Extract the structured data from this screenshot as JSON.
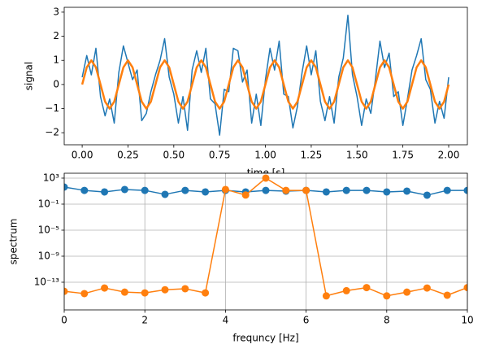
{
  "chart_data": [
    {
      "type": "line",
      "xlabel": "time [s]",
      "ylabel": "signal",
      "x": [
        0,
        0.025,
        0.05,
        0.075,
        0.1,
        0.125,
        0.15,
        0.175,
        0.2,
        0.225,
        0.25,
        0.275,
        0.3,
        0.325,
        0.35,
        0.375,
        0.4,
        0.425,
        0.45,
        0.475,
        0.5,
        0.525,
        0.55,
        0.575,
        0.6,
        0.625,
        0.65,
        0.675,
        0.7,
        0.725,
        0.75,
        0.775,
        0.8,
        0.825,
        0.85,
        0.875,
        0.9,
        0.925,
        0.95,
        0.975,
        1,
        1.025,
        1.05,
        1.075,
        1.1,
        1.125,
        1.15,
        1.175,
        1.2,
        1.225,
        1.25,
        1.275,
        1.3,
        1.325,
        1.35,
        1.375,
        1.4,
        1.425,
        1.45,
        1.475,
        1.5,
        1.525,
        1.55,
        1.575,
        1.6,
        1.625,
        1.65,
        1.675,
        1.7,
        1.725,
        1.75,
        1.775,
        1.8,
        1.825,
        1.85,
        1.875,
        1.9,
        1.925,
        1.95,
        1.975,
        2
      ],
      "series": [
        {
          "color": "#1f77b4",
          "values": [
            0.3,
            1.2,
            0.4,
            1.5,
            -0.5,
            -1.3,
            -0.6,
            -1.6,
            0.5,
            1.6,
            0.9,
            0.2,
            0.6,
            -1.5,
            -1.2,
            -0.3,
            0.4,
            1.0,
            1.9,
            0.3,
            -0.4,
            -1.6,
            -0.5,
            -1.9,
            0.6,
            1.4,
            0.5,
            1.5,
            -0.6,
            -0.8,
            -2.1,
            -0.2,
            -0.3,
            1.5,
            1.4,
            0.1,
            0.6,
            -1.6,
            -0.4,
            -1.7,
            0.2,
            1.5,
            0.6,
            1.8,
            -0.4,
            -0.5,
            -1.8,
            -0.9,
            0.5,
            1.6,
            0.4,
            1.4,
            -0.7,
            -1.5,
            -0.5,
            -1.6,
            0.3,
            1.1,
            2.87,
            0.4,
            -0.5,
            -1.7,
            -0.6,
            -1.2,
            0.2,
            1.8,
            0.7,
            1.3,
            -0.5,
            -0.3,
            -1.7,
            -0.6,
            0.6,
            1.2,
            1.9,
            0.2,
            -0.2,
            -1.6,
            -0.7,
            -1.4,
            0.3
          ]
        },
        {
          "color": "#ff7f0e",
          "values": [
            0,
            0.71,
            1,
            0.71,
            0,
            -0.71,
            -1,
            -0.71,
            0,
            0.71,
            1,
            0.71,
            0,
            -0.71,
            -1,
            -0.71,
            0,
            0.71,
            1,
            0.71,
            0,
            -0.71,
            -1,
            -0.71,
            0,
            0.71,
            1,
            0.71,
            0,
            -0.71,
            -1,
            -0.71,
            0,
            0.71,
            1,
            0.71,
            0,
            -0.71,
            -1,
            -0.71,
            0,
            0.71,
            1,
            0.71,
            0,
            -0.71,
            -1,
            -0.71,
            0,
            0.71,
            1,
            0.71,
            0,
            -0.71,
            -1,
            -0.71,
            0,
            0.71,
            1,
            0.71,
            0,
            -0.71,
            -1,
            -0.71,
            0,
            0.71,
            1,
            0.71,
            0,
            -0.71,
            -1,
            -0.71,
            0,
            0.71,
            1,
            0.71,
            0,
            -0.71,
            -1,
            -0.71,
            0
          ]
        }
      ],
      "xlim": [
        -0.098,
        2.102
      ],
      "ylim": [
        -2.5,
        3.2
      ],
      "xticks": [
        {
          "value": 0,
          "label": "0.00"
        },
        {
          "value": 0.25,
          "label": "0.25"
        },
        {
          "value": 0.5,
          "label": "0.50"
        },
        {
          "value": 0.75,
          "label": "0.75"
        },
        {
          "value": 1,
          "label": "1.00"
        },
        {
          "value": 1.25,
          "label": "1.25"
        },
        {
          "value": 1.5,
          "label": "1.50"
        },
        {
          "value": 1.75,
          "label": "1.75"
        },
        {
          "value": 2,
          "label": "2.00"
        }
      ],
      "yticks": [
        {
          "value": -2,
          "label": "−2"
        },
        {
          "value": -1,
          "label": "−1"
        },
        0,
        1,
        2,
        3
      ],
      "grid": false,
      "markers": false,
      "log_y": false
    },
    {
      "type": "line",
      "xlabel": "frequncy [Hz]",
      "ylabel": "spectrum",
      "x": [
        0,
        0.5,
        1,
        1.5,
        2,
        2.5,
        3,
        3.5,
        4,
        4.5,
        5,
        5.5,
        6,
        6.5,
        7,
        7.5,
        8,
        8.5,
        9,
        9.5,
        10
      ],
      "series": [
        {
          "color": "#1f77b4",
          "values": [
            42,
            13,
            7.5,
            18,
            13,
            3.2,
            13,
            7.5,
            13,
            7.5,
            13,
            10,
            13,
            7.5,
            13,
            13,
            7.5,
            10,
            2.4,
            13,
            13
          ]
        },
        {
          "color": "#ff7f0e",
          "values": [
            4e-15,
            1.8e-15,
            1.3e-14,
            3e-15,
            2.3e-15,
            7e-15,
            1e-14,
            2.3e-15,
            18,
            2.5,
            1000,
            13,
            13,
            8e-16,
            5e-15,
            1.5e-14,
            8e-16,
            3e-15,
            1.3e-14,
            1e-15,
            1.5e-14
          ]
        }
      ],
      "xlim": [
        0,
        10
      ],
      "ylim": [
        5.6e-18,
        5600
      ],
      "xticks": [
        0,
        2,
        4,
        6,
        8,
        10
      ],
      "yticks": [
        {
          "value": 1e-13,
          "label": "10⁻¹³"
        },
        {
          "value": 1e-09,
          "label": "10⁻⁹"
        },
        {
          "value": 1e-05,
          "label": "10⁻⁵"
        },
        {
          "value": 0.1,
          "label": "10⁻¹"
        },
        {
          "value": 1000,
          "label": "10³"
        }
      ],
      "grid": true,
      "markers": true,
      "log_y": true
    }
  ]
}
